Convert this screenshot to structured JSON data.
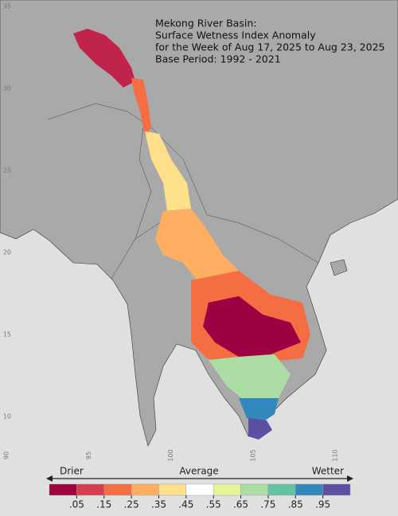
{
  "map": {
    "title": [
      "Mekong River Basin:",
      "Surface Wetness Index Anomaly",
      "for the Week of Aug 17, 2025 to Aug 23, 2025",
      "Base Period: 1992 - 2021"
    ],
    "lat_ticks": [
      35,
      30,
      25,
      20,
      15,
      10
    ],
    "lon_ticks": [
      90,
      95,
      100,
      105,
      110
    ]
  },
  "legend": {
    "left_label": "Drier",
    "center_label": "Average",
    "right_label": "Wetter",
    "colors": [
      "#9e0142",
      "#d53e4f",
      "#f46d43",
      "#fdae61",
      "#fee08b",
      "#ffffff",
      "#e6f598",
      "#abdda4",
      "#66c2a5",
      "#3288bd",
      "#5e4fa2"
    ],
    "ticks": [
      {
        "value": 0.05,
        "label": ".05"
      },
      {
        "value": 0.15,
        "label": ".15"
      },
      {
        "value": 0.25,
        "label": ".25"
      },
      {
        "value": 0.35,
        "label": ".35"
      },
      {
        "value": 0.45,
        "label": ".45"
      },
      {
        "value": 0.55,
        "label": ".55"
      },
      {
        "value": 0.65,
        "label": ".65"
      },
      {
        "value": 0.75,
        "label": ".75"
      },
      {
        "value": 0.85,
        "label": ".85"
      },
      {
        "value": 0.95,
        "label": ".95"
      }
    ]
  }
}
